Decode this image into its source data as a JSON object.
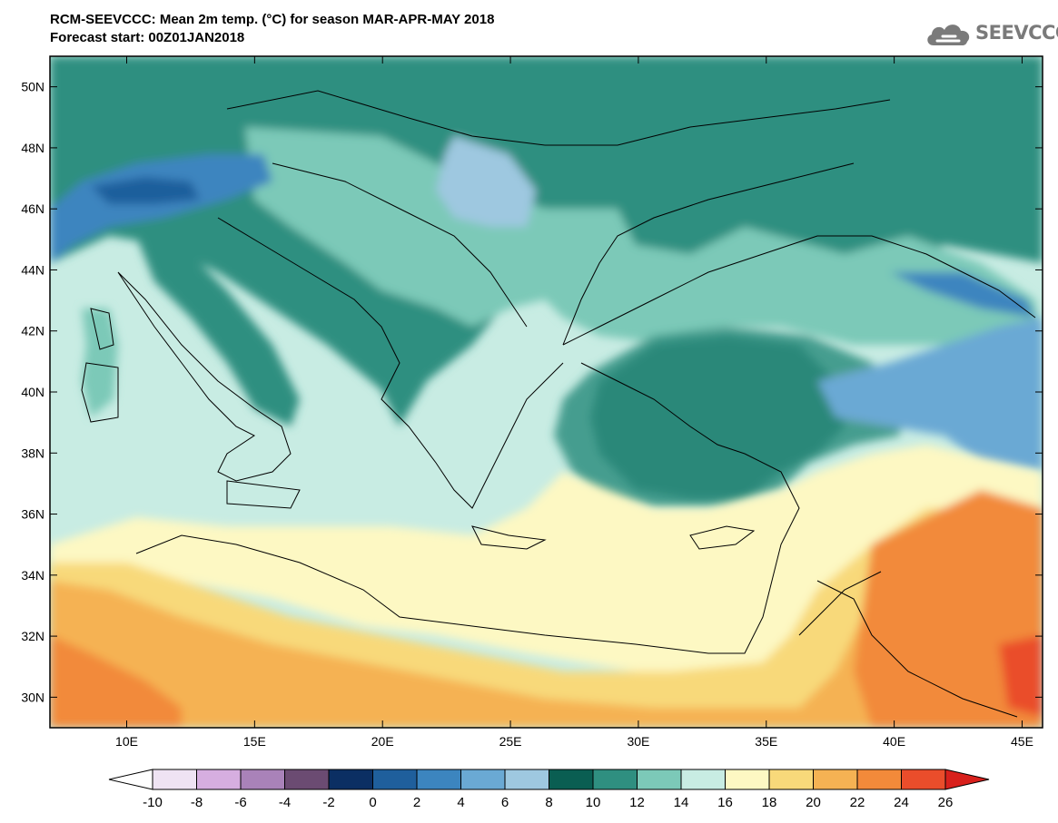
{
  "title": {
    "line1": "RCM-SEEVCCC: Mean 2m temp. (°C) for season MAR-APR-MAY 2018",
    "line2": "Forecast start: 00Z01JAN2018"
  },
  "logo": {
    "text": "SEEVCCC",
    "icon": "cloud-icon"
  },
  "map": {
    "lon_range": [
      7,
      45.8
    ],
    "lat_range": [
      29,
      51
    ],
    "lat_ticks": [
      "50N",
      "48N",
      "46N",
      "44N",
      "42N",
      "40N",
      "38N",
      "36N",
      "34N",
      "32N",
      "30N"
    ],
    "lon_ticks": [
      "10E",
      "15E",
      "20E",
      "25E",
      "30E",
      "35E",
      "40E",
      "45E"
    ]
  },
  "colorbar": {
    "labels": [
      "-10",
      "-8",
      "-6",
      "-4",
      "-2",
      "0",
      "2",
      "4",
      "6",
      "8",
      "10",
      "12",
      "14",
      "16",
      "18",
      "20",
      "22",
      "24",
      "26"
    ],
    "colors": [
      "#ffffff",
      "#efe3f3",
      "#d6aee0",
      "#a982b9",
      "#6b4b72",
      "#0b2f63",
      "#1f5f9c",
      "#3c85bf",
      "#6aa9d4",
      "#9ec8e0",
      "#0a5e52",
      "#2f8f80",
      "#7cc9b8",
      "#c8ece3",
      "#fdf8c3",
      "#f8d97a",
      "#f5b253",
      "#f28a3a",
      "#ea4d2b",
      "#d8201c"
    ]
  }
}
